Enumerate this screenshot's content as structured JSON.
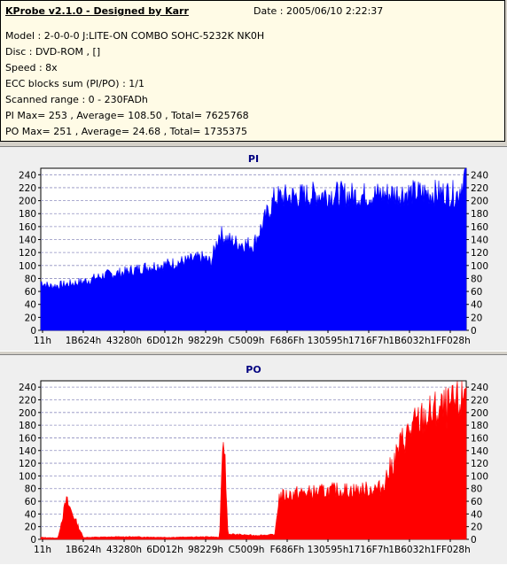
{
  "header": {
    "title": "KProbe v2.1.0 - Designed by Karr",
    "date": "Date : 2005/06/10 2:22:37",
    "model": "Model : 2-0-0-0 J:LITE-ON COMBO SOHC-5232K NK0H",
    "disc": "Disc : DVD-ROM ,  []",
    "speed": "Speed : 8x",
    "ecc": "ECC blocks sum (PI/PO) : 1/1",
    "range": "Scanned range : 0 - 230FADh",
    "pi_summary": "PI Max= 253 , Average= 108.50 , Total= 7625768",
    "po_summary": "PO Max= 251 , Average= 24.68 , Total= 1735375"
  },
  "colors": {
    "pi": "#0000ff",
    "po": "#ff0000",
    "plot_bg": "#ffffff",
    "grid": "#9090c0"
  },
  "chart_data": [
    {
      "type": "area",
      "title": "PI",
      "ylim": [
        0,
        250
      ],
      "yticks": [
        0,
        20,
        40,
        60,
        80,
        100,
        120,
        140,
        160,
        180,
        200,
        220,
        240
      ],
      "xtick_labels": [
        "11h",
        "1B624h",
        "43280h",
        "6D012h",
        "98229h",
        "C5009h",
        "F686Fh",
        "130595h",
        "1716F7h",
        "1B6032h",
        "1FF028h"
      ],
      "grid": true,
      "x": [
        0,
        0.02,
        0.05,
        0.1,
        0.15,
        0.2,
        0.25,
        0.3,
        0.35,
        0.38,
        0.4,
        0.42,
        0.44,
        0.46,
        0.5,
        0.55,
        0.6,
        0.62,
        0.65,
        0.7,
        0.75,
        0.8,
        0.85,
        0.9,
        0.95,
        0.98,
        1.0
      ],
      "values": [
        75,
        68,
        70,
        75,
        85,
        90,
        98,
        102,
        108,
        112,
        105,
        150,
        140,
        135,
        132,
        205,
        207,
        208,
        210,
        210,
        208,
        210,
        212,
        212,
        212,
        210,
        245
      ]
    },
    {
      "type": "area",
      "title": "PO",
      "ylim": [
        0,
        250
      ],
      "yticks": [
        0,
        20,
        40,
        60,
        80,
        100,
        120,
        140,
        160,
        180,
        200,
        220,
        240
      ],
      "xtick_labels": [
        "11h",
        "1B624h",
        "43280h",
        "6D012h",
        "98229h",
        "C5009h",
        "F686Fh",
        "130595h",
        "1716F7h",
        "1B6032h",
        "1FF028h"
      ],
      "grid": true,
      "x": [
        0,
        0.04,
        0.06,
        0.1,
        0.2,
        0.3,
        0.4,
        0.42,
        0.43,
        0.44,
        0.5,
        0.55,
        0.56,
        0.6,
        0.65,
        0.7,
        0.75,
        0.8,
        0.83,
        0.85,
        0.88,
        0.9,
        0.93,
        0.96,
        0.99,
        1.0
      ],
      "values": [
        3,
        2,
        60,
        3,
        4,
        3,
        4,
        3,
        168,
        8,
        6,
        7,
        65,
        70,
        72,
        75,
        75,
        78,
        120,
        150,
        175,
        185,
        195,
        200,
        210,
        245
      ]
    }
  ]
}
